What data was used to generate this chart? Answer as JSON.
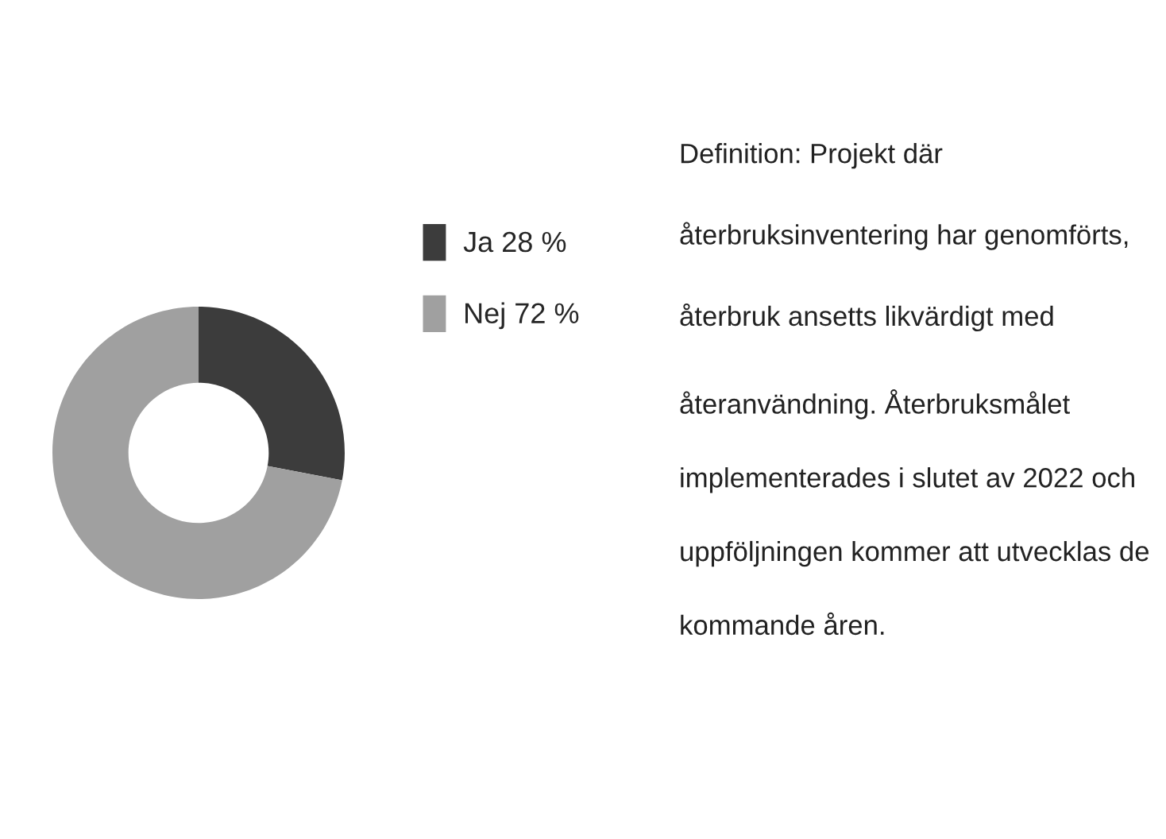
{
  "chart_data": {
    "type": "donut",
    "categories": [
      "Ja 28 %",
      "Nej 72 %"
    ],
    "values": [
      28,
      72
    ],
    "colors": [
      "#3c3c3c",
      "#a0a0a0"
    ],
    "legend": "right",
    "annotations": [
      "Definition: Projekt där återbruksinventering har genomförts, återbruk ansetts likvärdigt med återanvändning. Återbruksmålet implementerades i slutet av 2022 och uppföljningen kommer att utvecklas de kommande åren."
    ]
  }
}
